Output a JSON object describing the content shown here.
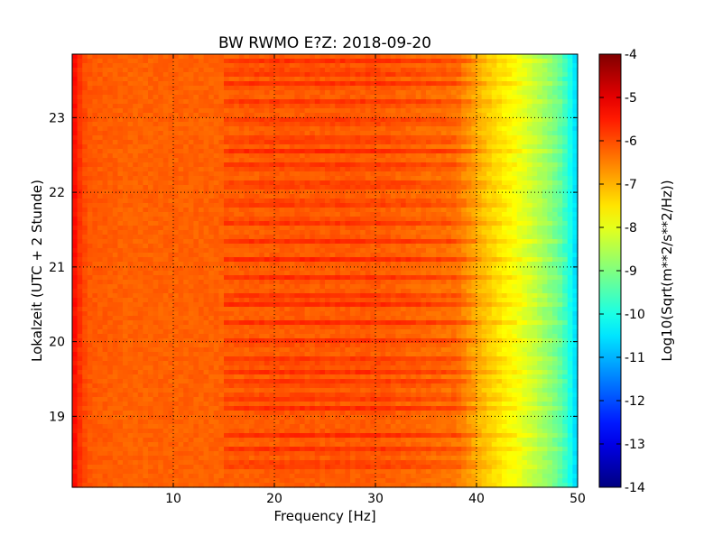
{
  "chart_data": {
    "type": "heatmap",
    "title": "BW RWMO E?Z: 2018-09-20",
    "xlabel": "Frequency [Hz]",
    "ylabel": "Lokalzeit (UTC + 2 Stunde)",
    "xlim": [
      0,
      50
    ],
    "ylim": [
      23.85,
      18.05
    ],
    "x_ticks": [
      "10",
      "20",
      "30",
      "40",
      "50"
    ],
    "x_tick_values": [
      10,
      20,
      30,
      40,
      50
    ],
    "y_ticks": [
      "19",
      "20",
      "21",
      "22",
      "23"
    ],
    "y_tick_values": [
      19,
      20,
      21,
      22,
      23
    ],
    "grid": true,
    "colormap": "jet",
    "colorbar": {
      "label": "Log10(Sqrt(m**2/s**2/Hz))",
      "min": -14,
      "max": -4,
      "ticks": [
        "-4",
        "-5",
        "-6",
        "-7",
        "-8",
        "-9",
        "-10",
        "-11",
        "-12",
        "-13",
        "-14"
      ],
      "tick_values": [
        -4,
        -5,
        -6,
        -7,
        -8,
        -9,
        -10,
        -11,
        -12,
        -13,
        -14
      ]
    },
    "spectrum_profile": {
      "frequency_hz": [
        0,
        0.5,
        1.5,
        5,
        15,
        20,
        30,
        38,
        40,
        42,
        44,
        46,
        48,
        49.5,
        50
      ],
      "log10_amplitude": [
        -5.2,
        -5.6,
        -6.1,
        -6.2,
        -6.2,
        -6.15,
        -6.15,
        -6.4,
        -7.0,
        -7.5,
        -7.9,
        -8.5,
        -9.2,
        -10.2,
        -10.8
      ]
    },
    "band_hours": [
      18.35,
      18.55,
      18.75,
      19.1,
      19.25,
      19.45,
      19.6,
      19.75,
      20.0,
      20.25,
      20.5,
      20.6,
      20.85,
      21.1,
      21.35,
      21.6,
      21.85,
      22.1,
      22.35,
      22.55,
      22.7,
      22.95,
      23.2,
      23.45,
      23.6,
      23.75
    ]
  }
}
